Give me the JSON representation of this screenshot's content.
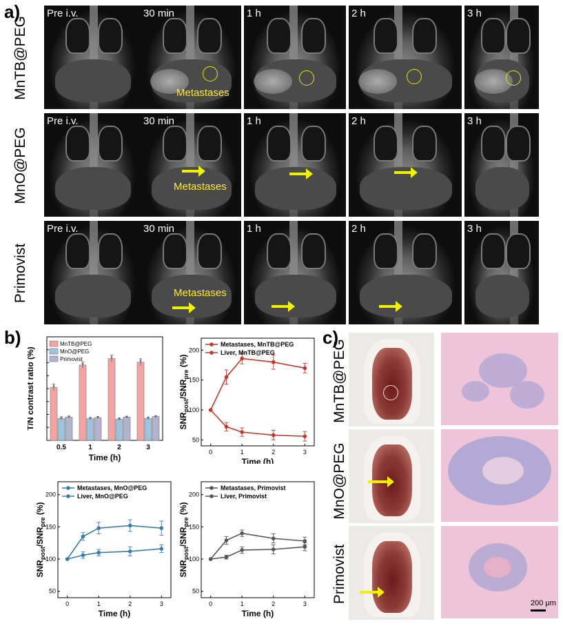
{
  "panel_labels": {
    "a": "a)",
    "b": "b)",
    "c": "c)"
  },
  "panel_a": {
    "rows": [
      "MnTB@PEG",
      "MnO@PEG",
      "Primovist"
    ],
    "time_labels": [
      "Pre i.v.",
      "30 min",
      "1 h",
      "2 h",
      "3 h"
    ],
    "annotation": "Metastases"
  },
  "panel_c": {
    "rows": [
      "MnTB@PEG",
      "MnO@PEG",
      "Primovist"
    ],
    "scale_bar": "200 μm"
  },
  "chart_data": [
    {
      "type": "bar",
      "xlabel": "Time (h)",
      "ylabel": "T/N contrast ratio (%)",
      "categories": [
        "0.5",
        "1",
        "2",
        "3"
      ],
      "ylim": [
        0,
        400
      ],
      "yticks": [
        0,
        50,
        100,
        150,
        200,
        250,
        300,
        350,
        400
      ],
      "legend": "top-left",
      "series": [
        {
          "name": "MnTB@PEG",
          "color": "#f4a3a3",
          "values": [
            205,
            291,
            316,
            302
          ],
          "errors": [
            12,
            12,
            13,
            13
          ]
        },
        {
          "name": "MnO@PEG",
          "color": "#9fc3db",
          "values": [
            85,
            84,
            82,
            85
          ],
          "errors": [
            6,
            5,
            5,
            5
          ]
        },
        {
          "name": "Primovist",
          "color": "#b3b3cf",
          "values": [
            90,
            88,
            90,
            92
          ],
          "errors": [
            4,
            4,
            3,
            3
          ]
        }
      ]
    },
    {
      "type": "line",
      "xlabel": "Time (h)",
      "ylabel": "SNRpost/SNRpre (%)",
      "x": [
        0,
        0.5,
        1,
        2,
        3
      ],
      "xlim": [
        -0.3,
        3.3
      ],
      "ylim": [
        40,
        220
      ],
      "yticks": [
        50,
        100,
        150,
        200
      ],
      "xticks": [
        0,
        1,
        2,
        3
      ],
      "legend": "top-left",
      "series": [
        {
          "name": "Metastases, MnTB@PEG",
          "color": "#c0392b",
          "values": [
            100,
            155,
            186,
            180,
            170
          ],
          "errors": [
            0,
            12,
            9,
            12,
            8
          ]
        },
        {
          "name": "Liver, MnTB@PEG",
          "color": "#c0392b",
          "values": [
            100,
            72,
            63,
            58,
            56
          ],
          "errors": [
            0,
            7,
            7,
            8,
            8
          ]
        }
      ]
    },
    {
      "type": "line",
      "xlabel": "Time (h)",
      "ylabel": "SNRpost/SNRpre (%)",
      "x": [
        0,
        0.5,
        1,
        2,
        3
      ],
      "xlim": [
        -0.3,
        3.3
      ],
      "ylim": [
        40,
        220
      ],
      "yticks": [
        50,
        100,
        150,
        200
      ],
      "xticks": [
        0,
        1,
        2,
        3
      ],
      "legend": "top-left",
      "series": [
        {
          "name": "Metastases, MnO@PEG",
          "color": "#3a7ca5",
          "values": [
            100,
            106,
            110,
            112,
            116
          ],
          "errors": [
            0,
            5,
            5,
            7,
            6
          ]
        },
        {
          "name": "Liver, MnO@PEG",
          "color": "#3a7ca5",
          "values": [
            100,
            135,
            148,
            152,
            148
          ],
          "errors": [
            0,
            6,
            9,
            9,
            11
          ]
        }
      ]
    },
    {
      "type": "line",
      "xlabel": "Time (h)",
      "ylabel": "SNRpost/SNRpre (%)",
      "x": [
        0,
        0.5,
        1,
        2,
        3
      ],
      "xlim": [
        -0.3,
        3.3
      ],
      "ylim": [
        40,
        220
      ],
      "yticks": [
        50,
        100,
        150,
        200
      ],
      "xticks": [
        0,
        1,
        2,
        3
      ],
      "legend": "top-left",
      "series": [
        {
          "name": "Metastases, Primovist",
          "color": "#555555",
          "values": [
            100,
            103,
            114,
            115,
            119
          ],
          "errors": [
            0,
            3,
            5,
            7,
            6
          ]
        },
        {
          "name": "Liver, Primovist",
          "color": "#555555",
          "values": [
            100,
            129,
            140,
            132,
            128
          ],
          "errors": [
            0,
            6,
            5,
            7,
            6
          ]
        }
      ]
    }
  ]
}
